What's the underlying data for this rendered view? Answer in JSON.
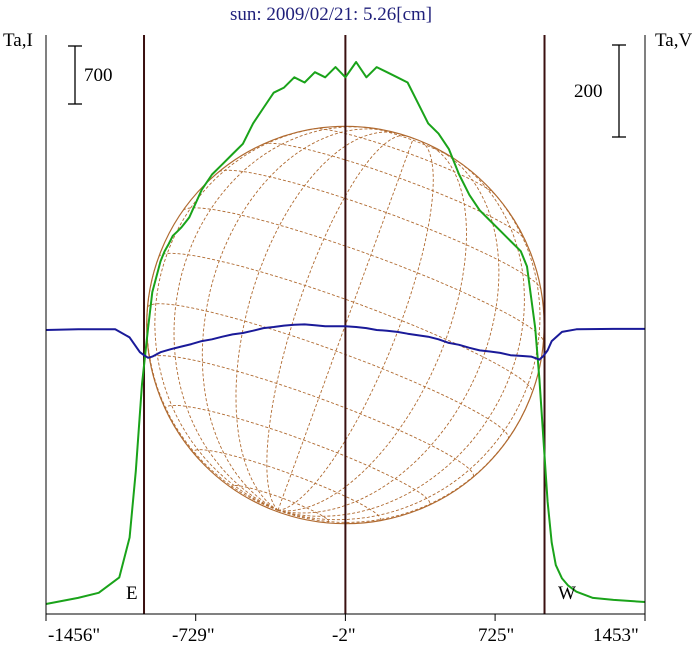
{
  "chart_data": {
    "type": "line",
    "title": "sun: 2009/02/21: 5.26[cm]",
    "left_axis_label": "Ta,I",
    "right_axis_label": "Ta,V",
    "left_scale_bar": {
      "value": "700"
    },
    "right_scale_bar": {
      "value": "200"
    },
    "x_tick_labels": [
      "-1456\"",
      "-729\"",
      "-2\"",
      "725\"",
      "1453\""
    ],
    "x_ticks": [
      -1456,
      -729,
      -2,
      725,
      1453
    ],
    "xlim": [
      -1456,
      1453
    ],
    "limb_markers": [
      {
        "label": "E",
        "x": -980
      },
      {
        "label": "W",
        "x": 965
      }
    ],
    "center_marker_x": -2,
    "solar_disc": {
      "center_x": -2,
      "radius": 965,
      "color": "#b06a30"
    },
    "grid": false,
    "series": [
      {
        "name": "Ta,I",
        "color": "#1aa31a",
        "x": [
          -1456,
          -1300,
          -1200,
          -1100,
          -1050,
          -1020,
          -990,
          -960,
          -940,
          -920,
          -900,
          -880,
          -860,
          -840,
          -820,
          -800,
          -780,
          -760,
          -740,
          -720,
          -700,
          -650,
          -600,
          -550,
          -500,
          -450,
          -400,
          -350,
          -300,
          -250,
          -200,
          -150,
          -100,
          -50,
          -2,
          50,
          100,
          150,
          200,
          250,
          300,
          350,
          400,
          450,
          500,
          550,
          600,
          650,
          700,
          750,
          800,
          850,
          880,
          900,
          920,
          940,
          960,
          980,
          1000,
          1020,
          1050,
          1080,
          1120,
          1200,
          1300,
          1453
        ],
        "y": [
          0,
          60,
          110,
          260,
          650,
          1300,
          2150,
          2700,
          3050,
          3200,
          3350,
          3450,
          3520,
          3600,
          3640,
          3680,
          3730,
          3780,
          3870,
          3960,
          4050,
          4200,
          4300,
          4400,
          4500,
          4700,
          4850,
          5000,
          5050,
          5150,
          5100,
          5200,
          5150,
          5250,
          5150,
          5300,
          5150,
          5250,
          5200,
          5150,
          5100,
          4900,
          4700,
          4600,
          4450,
          4200,
          4000,
          3850,
          3750,
          3650,
          3550,
          3450,
          3300,
          3000,
          2700,
          2200,
          1600,
          1000,
          600,
          380,
          250,
          180,
          120,
          60,
          40,
          20
        ]
      },
      {
        "name": "Ta,V",
        "color": "#1a1a99",
        "x": [
          -1456,
          -1300,
          -1120,
          -1050,
          -1000,
          -980,
          -960,
          -940,
          -900,
          -850,
          -800,
          -750,
          -700,
          -650,
          -600,
          -550,
          -500,
          -450,
          -400,
          -350,
          -300,
          -250,
          -200,
          -150,
          -100,
          -50,
          -2,
          50,
          100,
          150,
          200,
          250,
          300,
          350,
          400,
          450,
          500,
          550,
          600,
          650,
          700,
          750,
          800,
          850,
          900,
          940,
          960,
          980,
          1000,
          1050,
          1120,
          1300,
          1453
        ],
        "y": [
          0,
          2,
          2,
          -20,
          -60,
          -68,
          -75,
          -72,
          -60,
          -52,
          -45,
          -38,
          -30,
          -25,
          -18,
          -12,
          -8,
          -2,
          5,
          8,
          12,
          14,
          15,
          13,
          10,
          10,
          10,
          8,
          5,
          0,
          -2,
          -5,
          -10,
          -14,
          -18,
          -25,
          -35,
          -40,
          -48,
          -55,
          -58,
          -62,
          -68,
          -70,
          -72,
          -80,
          -70,
          -55,
          -30,
          -5,
          2,
          3,
          3
        ]
      }
    ]
  }
}
